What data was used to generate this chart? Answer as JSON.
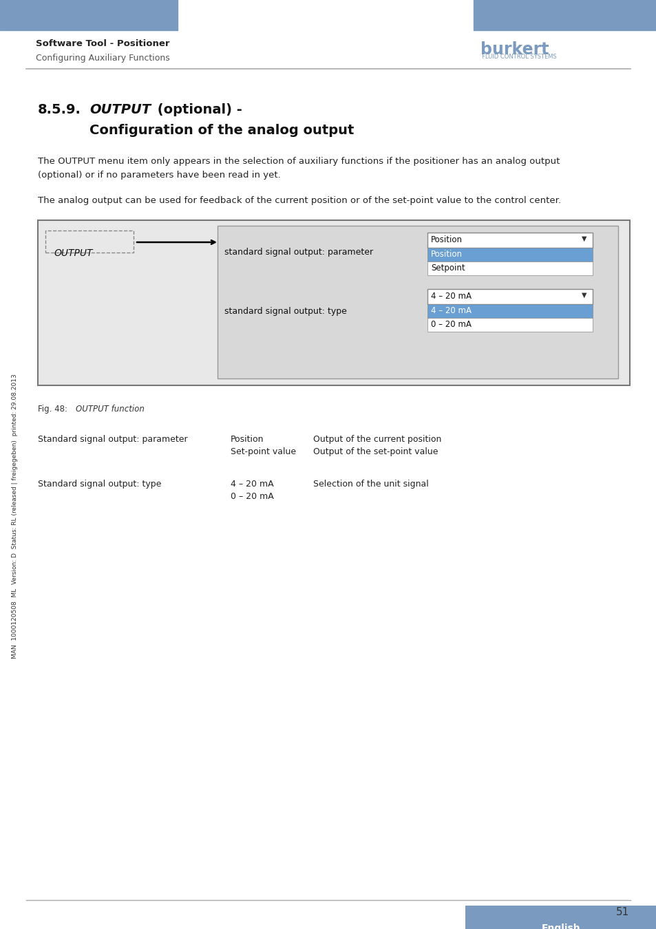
{
  "page_bg": "#ffffff",
  "header_bar_color": "#7a9bbf",
  "header_text_bold": "Software Tool - Positioner",
  "header_text_normal": "Configuring Auxiliary Functions",
  "section_number": "8.5.9.",
  "section_title_italic": "OUTPUT",
  "section_title_rest": " (optional) -",
  "section_title_line2": "Configuration of the analog output",
  "para1_line1": "The OUTPUT menu item only appears in the selection of auxiliary functions if the positioner has an analog output",
  "para1_line2": "(optional) or if no parameters have been read in yet.",
  "para2": "The analog output can be used for feedback of the current position or of the set-point value to the control center.",
  "fig_label": "Fig. 48:",
  "fig_caption_italic": "OUTPUT function",
  "diagram_bg": "#e8e8e8",
  "output_label": "OUTPUT",
  "dropdown_highlight": "#6a9fd4",
  "dropdown_text_highlight": "#ffffff",
  "label_param": "standard signal output: parameter",
  "label_type": "standard signal output: type",
  "dd1_top": "Position",
  "dd1_items": [
    "Position",
    "Setpoint"
  ],
  "dd2_top": "4 – 20 mA",
  "dd2_items": [
    "4 – 20 mA",
    "0 – 20 mA"
  ],
  "table_col1_label": "Standard signal output: parameter",
  "table_col1_label2": "Standard signal output: type",
  "table_col2_row1": "Position",
  "table_col2_row2": "Set-point value",
  "table_col2_row3": "4 – 20 mA",
  "table_col2_row4": "0 – 20 mA",
  "table_col3_row1": "Output of the current position",
  "table_col3_row2": "Output of the set-point value",
  "table_col3_row3": "Selection of the unit signal",
  "sidebar_text": "MAN  1000120508  ML  Version: D  Status: RL (released | freigegeben)  printed: 29.08.2013",
  "page_number": "51",
  "footer_lang": "English",
  "footer_lang_bg": "#7a9bbf",
  "line_color": "#aaaaaa",
  "burkert_text": "burkert",
  "burkert_sub": "FLUID CONTROL SYSTEMS"
}
